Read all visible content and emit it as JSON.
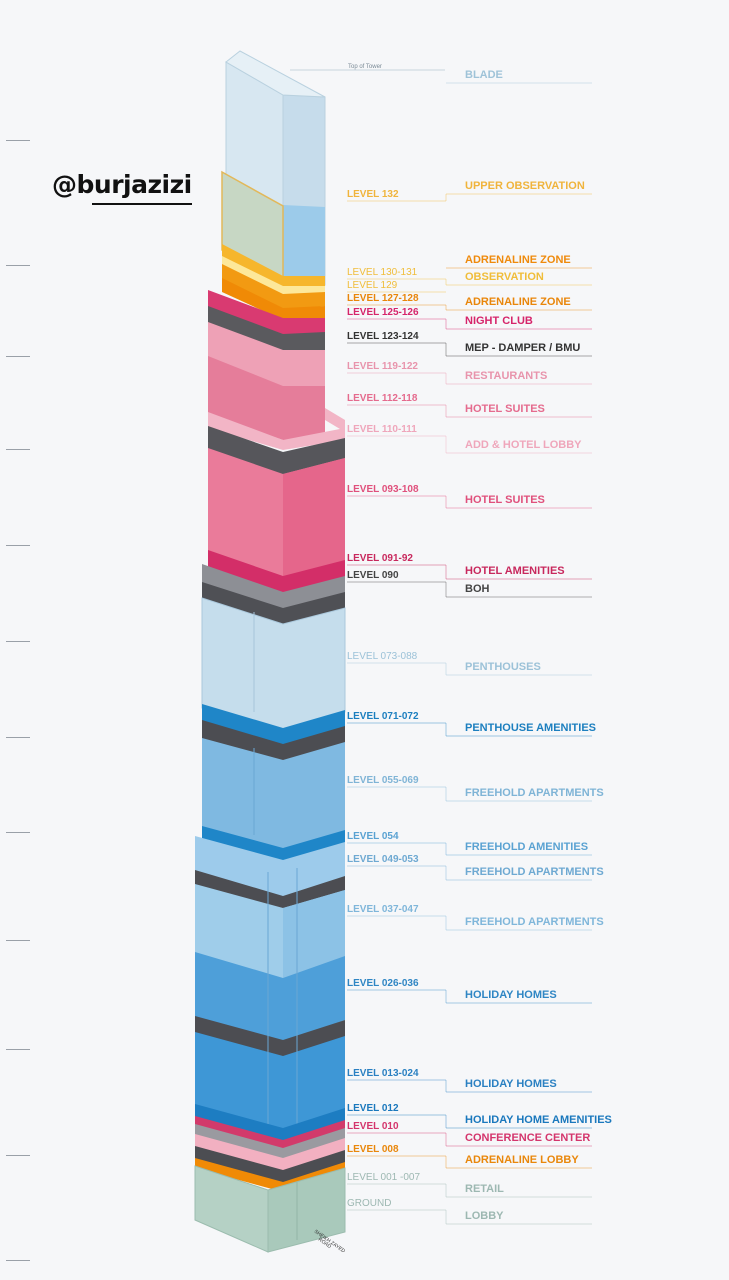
{
  "handle": "@burjazizi",
  "road_label_1": "SHEIKH ZAYED",
  "road_label_2": "ROAD",
  "top_of_tower_label": "Top of Tower",
  "rows": [
    {
      "level": "",
      "program": "BLADE",
      "color": "#9fc3d8",
      "bold": false
    },
    {
      "level": "LEVEL 132",
      "program": "UPPER OBSERVATION",
      "color": "#f0b43c",
      "bold": true
    },
    {
      "level": "",
      "program": "ADRENALINE ZONE",
      "color": "#ef8a0c",
      "bold": true
    },
    {
      "level": "LEVEL 130-131",
      "program": "OBSERVATION",
      "color": "#f0bd3a",
      "bold": false
    },
    {
      "level": "LEVEL 129",
      "program": "",
      "color": "#f0bd3a",
      "bold": false
    },
    {
      "level": "LEVEL 127-128",
      "program": "ADRENALINE ZONE",
      "color": "#e9860a",
      "bold": true
    },
    {
      "level": "LEVEL 125-126",
      "program": "NIGHT CLUB",
      "color": "#d6246a",
      "bold": true
    },
    {
      "level": "LEVEL 123-124",
      "program": "MEP - DAMPER / BMU",
      "color": "#333333",
      "bold": true
    },
    {
      "level": "LEVEL 119-122",
      "program": "RESTAURANTS",
      "color": "#e894ac",
      "bold": true
    },
    {
      "level": "LEVEL 112-118",
      "program": "HOTEL SUITES",
      "color": "#e56b8e",
      "bold": true
    },
    {
      "level": "LEVEL 110-111",
      "program": "ADD & HOTEL LOBBY",
      "color": "#efa6bb",
      "bold": true
    },
    {
      "level": "LEVEL 093-108",
      "program": "HOTEL SUITES",
      "color": "#e0507c",
      "bold": true
    },
    {
      "level": "LEVEL 091-92",
      "program": "HOTEL AMENITIES",
      "color": "#c8285d",
      "bold": true
    },
    {
      "level": "LEVEL 090",
      "program": "BOH",
      "color": "#444444",
      "bold": true
    },
    {
      "level": "LEVEL 073-088",
      "program": "PENTHOUSES",
      "color": "#9cc2d8",
      "bold": false
    },
    {
      "level": "LEVEL 071-072",
      "program": "PENTHOUSE AMENITIES",
      "color": "#1c7fbf",
      "bold": true
    },
    {
      "level": "LEVEL 055-069",
      "program": "FREEHOLD APARTMENTS",
      "color": "#7fb4d6",
      "bold": true
    },
    {
      "level": "LEVEL 054",
      "program": "FREEHOLD AMENITIES",
      "color": "#5aa2d2",
      "bold": true
    },
    {
      "level": "LEVEL 049-053",
      "program": "FREEHOLD APARTMENTS",
      "color": "#6ea9d2",
      "bold": true
    },
    {
      "level": "LEVEL 037-047",
      "program": "FREEHOLD APARTMENTS",
      "color": "#7fb6da",
      "bold": true
    },
    {
      "level": "LEVEL 026-036",
      "program": "HOLIDAY HOMES",
      "color": "#2f86c4",
      "bold": true
    },
    {
      "level": "LEVEL 013-024",
      "program": "HOLIDAY HOMES",
      "color": "#2a80c2",
      "bold": true
    },
    {
      "level": "LEVEL 012",
      "program": "HOLIDAY HOME AMENITIES",
      "color": "#1a78bd",
      "bold": true
    },
    {
      "level": "LEVEL 010",
      "program": "CONFERENCE CENTER",
      "color": "#d4356c",
      "bold": true
    },
    {
      "level": "LEVEL 008",
      "program": "ADRENALINE LOBBY",
      "color": "#e9870b",
      "bold": true
    },
    {
      "level": "LEVEL 001 -007",
      "program": "RETAIL",
      "color": "#9db8b2",
      "bold": false
    },
    {
      "level": "GROUND",
      "program": "LOBBY",
      "color": "#9db8b2",
      "bold": false
    }
  ]
}
